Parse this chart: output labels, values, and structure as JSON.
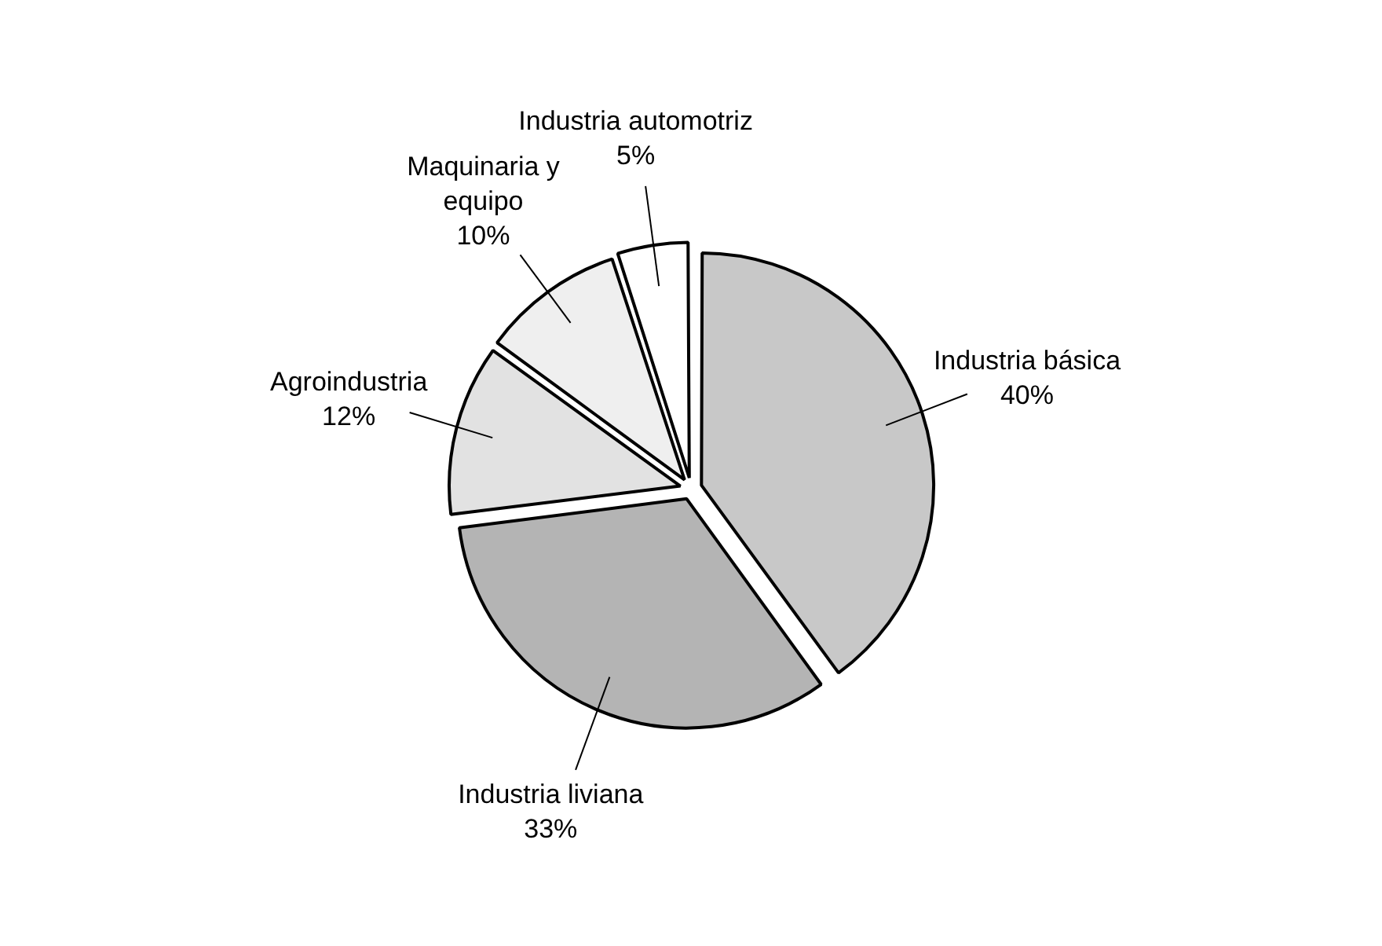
{
  "chart_data": {
    "type": "pie",
    "categories": [
      "Industria básica",
      "Industria liviana",
      "Agroindustria",
      "Maquinaria y equipo",
      "Industria automotriz"
    ],
    "values": [
      40,
      33,
      12,
      10,
      5
    ],
    "value_labels": [
      "40%",
      "33%",
      "12%",
      "10%",
      "5%"
    ],
    "colors": [
      "#c8c8c8",
      "#b4b4b4",
      "#e2e2e2",
      "#efefef",
      "#ffffff"
    ],
    "legend": false
  }
}
